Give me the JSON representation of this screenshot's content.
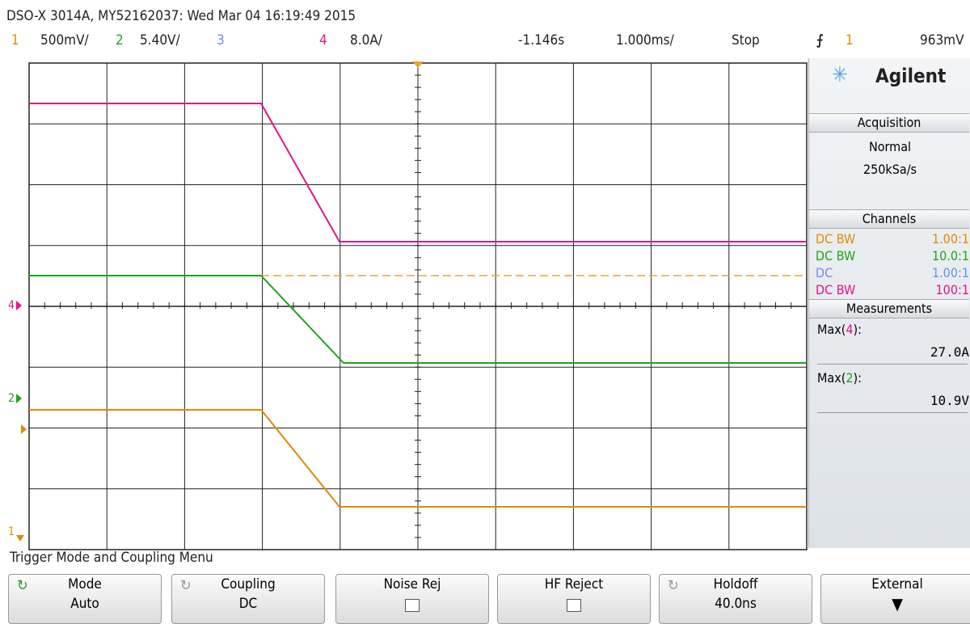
{
  "header": {
    "title": "DSO-X 3014A, MY52162037: Wed Mar 04 16:19:49 2015"
  },
  "status": {
    "ch1": {
      "number": "1",
      "scale": "500mV/"
    },
    "ch2": {
      "number": "2",
      "scale": "5.40V/"
    },
    "ch3": {
      "number": "3"
    },
    "ch4": {
      "number": "4",
      "scale": "8.0A/"
    },
    "delay": "-1.146s",
    "timebase": "1.000ms/",
    "run_state": "Stop",
    "trigger": {
      "source": "1",
      "level": "963mV"
    }
  },
  "screen": {
    "markers": {
      "ch4": "4",
      "ch2": "2",
      "ch1": "1"
    }
  },
  "panel": {
    "brand": "Agilent",
    "acquisition": {
      "title": "Acquisition",
      "mode": "Normal",
      "rate": "250kSa/s"
    },
    "channels": {
      "title": "Channels",
      "rows": [
        [
          "DC BW",
          "1.00:1"
        ],
        [
          "DC BW",
          "10.0:1"
        ],
        [
          "DC",
          "1.00:1"
        ],
        [
          "DC BW",
          "100:1"
        ]
      ]
    },
    "measurements": {
      "title": "Measurements",
      "items": [
        {
          "prefix": "Max(",
          "channel": "4",
          "suffix": "):",
          "value": "27.0A"
        },
        {
          "prefix": "Max(",
          "channel": "2",
          "suffix": "):",
          "value": "10.9V"
        }
      ]
    }
  },
  "menu": {
    "title": "Trigger Mode and Coupling Menu",
    "softkeys": [
      {
        "label": "Mode",
        "value": "Auto"
      },
      {
        "label": "Coupling",
        "value": "DC"
      },
      {
        "label": "Noise Rej"
      },
      {
        "label": "HF Reject"
      },
      {
        "label": "Holdoff",
        "value": "40.0ns"
      },
      {
        "label": "External"
      }
    ]
  }
}
